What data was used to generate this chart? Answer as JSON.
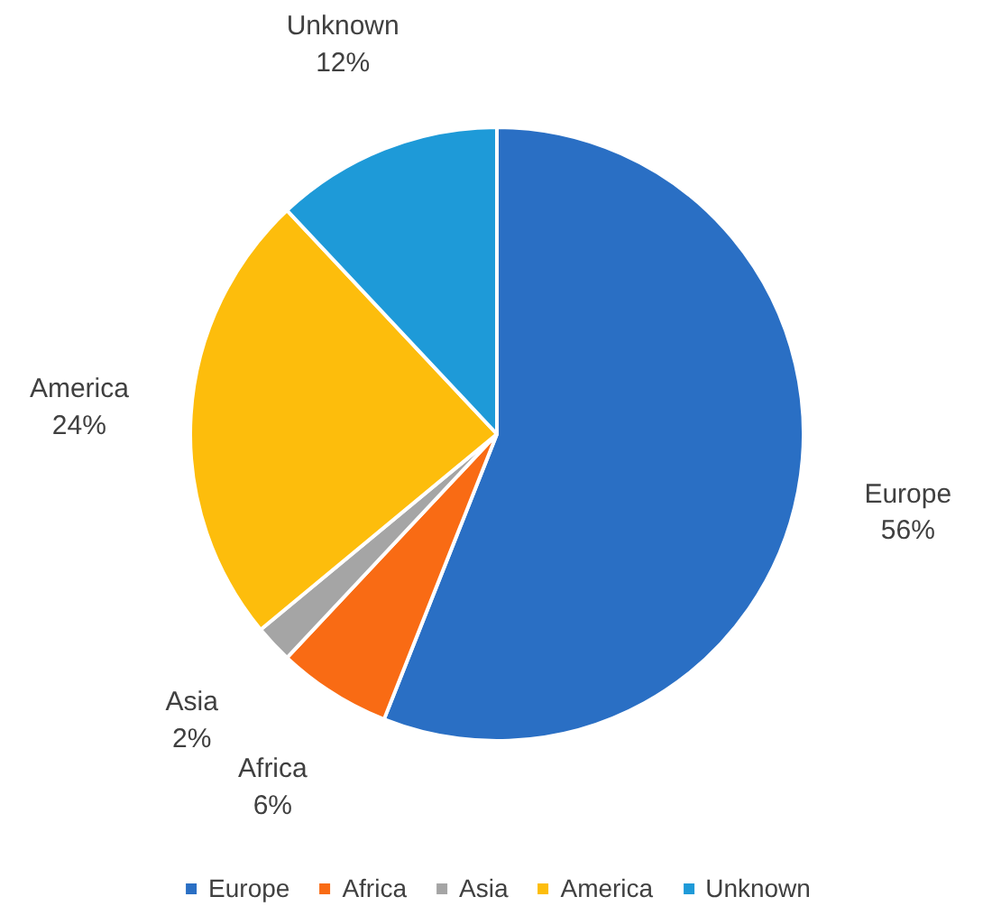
{
  "chart_data": {
    "type": "pie",
    "categories": [
      "Europe",
      "Africa",
      "Asia",
      "America",
      "Unknown"
    ],
    "values": [
      56,
      6,
      2,
      24,
      12
    ],
    "colors": [
      "#2a6fc4",
      "#f96b14",
      "#a5a5a5",
      "#fdbd0c",
      "#1e9ad8"
    ],
    "value_labels": [
      "56%",
      "6%",
      "2%",
      "24%",
      "12%"
    ],
    "data_labels": true,
    "legend": "bottom"
  }
}
